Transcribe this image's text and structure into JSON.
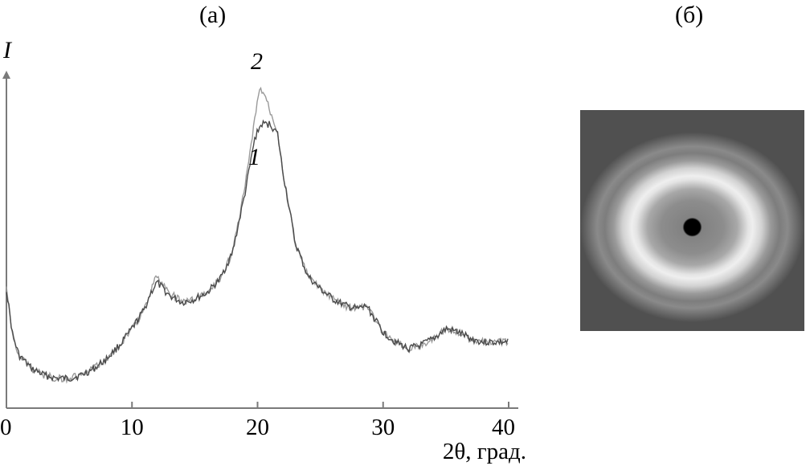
{
  "panels": {
    "a": "(а)",
    "b": "(б)"
  },
  "chart_data": {
    "type": "line",
    "ylabel": "I",
    "xlabel": "2θ, град.",
    "xlim": [
      0,
      40
    ],
    "ylim": [
      0,
      1
    ],
    "x_ticks": [
      0,
      10,
      20,
      30,
      40
    ],
    "grid": false,
    "series": [
      {
        "name": "1",
        "points": [
          [
            0,
            0.36
          ],
          [
            0.5,
            0.22
          ],
          [
            1,
            0.16
          ],
          [
            2,
            0.12
          ],
          [
            3,
            0.1
          ],
          [
            4,
            0.09
          ],
          [
            5,
            0.09
          ],
          [
            6,
            0.1
          ],
          [
            7,
            0.12
          ],
          [
            8,
            0.15
          ],
          [
            9,
            0.19
          ],
          [
            10,
            0.24
          ],
          [
            11,
            0.3
          ],
          [
            11.5,
            0.35
          ],
          [
            12,
            0.38
          ],
          [
            13,
            0.34
          ],
          [
            14,
            0.32
          ],
          [
            15,
            0.33
          ],
          [
            16,
            0.35
          ],
          [
            17,
            0.39
          ],
          [
            18,
            0.47
          ],
          [
            19,
            0.65
          ],
          [
            19.8,
            0.82
          ],
          [
            20.3,
            0.86
          ],
          [
            21,
            0.86
          ],
          [
            21.6,
            0.83
          ],
          [
            22,
            0.72
          ],
          [
            23,
            0.5
          ],
          [
            24,
            0.4
          ],
          [
            25,
            0.36
          ],
          [
            26,
            0.33
          ],
          [
            27,
            0.31
          ],
          [
            28,
            0.3
          ],
          [
            28.7,
            0.31
          ],
          [
            29,
            0.29
          ],
          [
            30,
            0.23
          ],
          [
            31,
            0.2
          ],
          [
            32,
            0.18
          ],
          [
            33,
            0.19
          ],
          [
            34,
            0.21
          ],
          [
            35,
            0.24
          ],
          [
            36,
            0.23
          ],
          [
            37,
            0.21
          ],
          [
            38,
            0.2
          ],
          [
            39,
            0.2
          ],
          [
            40,
            0.2
          ]
        ]
      },
      {
        "name": "2",
        "points": [
          [
            0,
            0.36
          ],
          [
            0.5,
            0.22
          ],
          [
            1,
            0.16
          ],
          [
            2,
            0.12
          ],
          [
            3,
            0.1
          ],
          [
            4,
            0.09
          ],
          [
            5,
            0.09
          ],
          [
            6,
            0.1
          ],
          [
            7,
            0.12
          ],
          [
            8,
            0.15
          ],
          [
            9,
            0.19
          ],
          [
            10,
            0.24
          ],
          [
            11,
            0.3
          ],
          [
            11.5,
            0.36
          ],
          [
            12,
            0.4
          ],
          [
            13,
            0.35
          ],
          [
            14,
            0.32
          ],
          [
            15,
            0.33
          ],
          [
            16,
            0.35
          ],
          [
            17,
            0.39
          ],
          [
            18,
            0.47
          ],
          [
            19,
            0.67
          ],
          [
            19.8,
            0.88
          ],
          [
            20.2,
            0.97
          ],
          [
            20.6,
            0.95
          ],
          [
            21,
            0.9
          ],
          [
            21.6,
            0.84
          ],
          [
            22,
            0.72
          ],
          [
            23,
            0.5
          ],
          [
            24,
            0.4
          ],
          [
            25,
            0.36
          ],
          [
            26,
            0.33
          ],
          [
            27,
            0.31
          ],
          [
            28,
            0.3
          ],
          [
            28.7,
            0.31
          ],
          [
            29,
            0.29
          ],
          [
            30,
            0.23
          ],
          [
            31,
            0.2
          ],
          [
            32,
            0.18
          ],
          [
            33,
            0.19
          ],
          [
            34,
            0.21
          ],
          [
            35,
            0.24
          ],
          [
            36,
            0.23
          ],
          [
            37,
            0.21
          ],
          [
            38,
            0.2
          ],
          [
            39,
            0.2
          ],
          [
            40,
            0.2
          ]
        ]
      }
    ]
  },
  "colors": {
    "axis": "#7a7a7a",
    "series_1": "#4a4a4a",
    "series_2": "#9a9a9a"
  }
}
